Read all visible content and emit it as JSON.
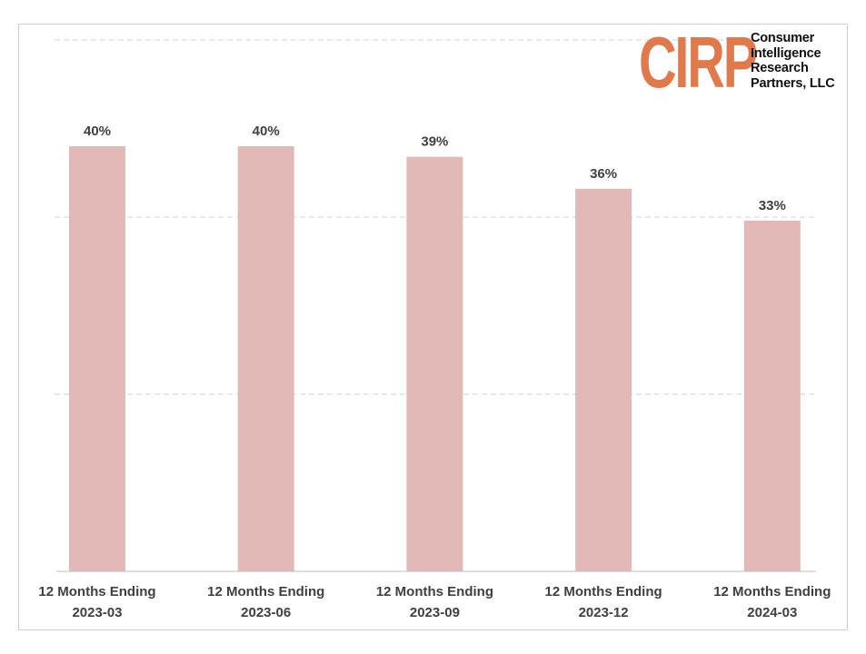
{
  "logo": {
    "mark": "CIRP",
    "lines": [
      "Consumer",
      "Intelligence",
      "Research",
      "Partners, LLC"
    ]
  },
  "colors": {
    "bar": "#e2b9b7",
    "gridline": "#d3d3d3",
    "axis": "#bfbfbf",
    "text": "#404040",
    "brand": "#e07a4c"
  },
  "chart_data": {
    "type": "bar",
    "title": "",
    "xlabel": "",
    "ylabel": "",
    "ylim": [
      0,
      50
    ],
    "grid": true,
    "gridlines_at": [
      16.67,
      33.33,
      50
    ],
    "categories": [
      [
        "12 Months Ending",
        "2023-03"
      ],
      [
        "12 Months Ending",
        "2023-06"
      ],
      [
        "12 Months Ending",
        "2023-09"
      ],
      [
        "12 Months Ending",
        "2023-12"
      ],
      [
        "12 Months Ending",
        "2024-03"
      ]
    ],
    "values": [
      40,
      40,
      39,
      36,
      33
    ],
    "data_labels": [
      "40%",
      "40%",
      "39%",
      "36%",
      "33%"
    ]
  }
}
